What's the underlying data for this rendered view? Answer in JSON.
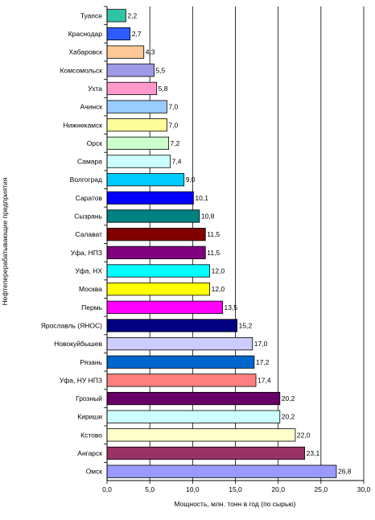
{
  "chart_data": {
    "type": "bar",
    "orientation": "horizontal",
    "title": "",
    "xlabel": "Мощность, млн. тонн в год (по сырью)",
    "ylabel": "Нефтеперерабатывающие предприятия",
    "xlim": [
      0,
      30
    ],
    "xticks": [
      "0,0",
      "5,0",
      "10,0",
      "15,0",
      "20,0",
      "25,0",
      "30,0"
    ],
    "grid": "vertical",
    "legend": "none",
    "categories": [
      "Туапсе",
      "Краснодар",
      "Хабаровск",
      "Комсомольск",
      "Ухта",
      "Ачинск",
      "Нижнекамск",
      "Орск",
      "Самара",
      "Волгоград",
      "Саратов",
      "Сызрань",
      "Салават",
      "Уфа, НПЗ",
      "Уфа, НХ",
      "Москва",
      "Пермь",
      "Ярославль (ЯНОС)",
      "Новокуйбышев",
      "Рязань",
      "Уфа, НУ НПЗ",
      "Грозный",
      "Кириши",
      "Кстово",
      "Ангарск",
      "Омск"
    ],
    "values": [
      2.2,
      2.7,
      4.3,
      5.5,
      5.8,
      7.0,
      7.0,
      7.2,
      7.4,
      9.0,
      10.1,
      10.8,
      11.5,
      11.5,
      12.0,
      12.0,
      13.5,
      15.2,
      17.0,
      17.2,
      17.4,
      20.2,
      20.2,
      22.0,
      23.1,
      26.8
    ],
    "value_labels": [
      "2,2",
      "2,7",
      "4,3",
      "5,5",
      "5,8",
      "7,0",
      "7,0",
      "7,2",
      "7,4",
      "9,0",
      "10,1",
      "10,8",
      "11,5",
      "11,5",
      "12,0",
      "12,0",
      "13,5",
      "15,2",
      "17,0",
      "17,2",
      "17,4",
      "20,2",
      "20,2",
      "22,0",
      "23,1",
      "26,8"
    ],
    "colors": [
      "#2ec4a6",
      "#2e5cff",
      "#ffc896",
      "#9e9ae8",
      "#ff99cc",
      "#99ccff",
      "#ffff99",
      "#ccffcc",
      "#ccffff",
      "#00ccff",
      "#0000ff",
      "#008080",
      "#800000",
      "#800080",
      "#00ffff",
      "#ffff00",
      "#ff00ff",
      "#000080",
      "#ccccff",
      "#0066cc",
      "#ff8080",
      "#660066",
      "#ccffff",
      "#ffffcc",
      "#993366",
      "#9999ff"
    ]
  }
}
